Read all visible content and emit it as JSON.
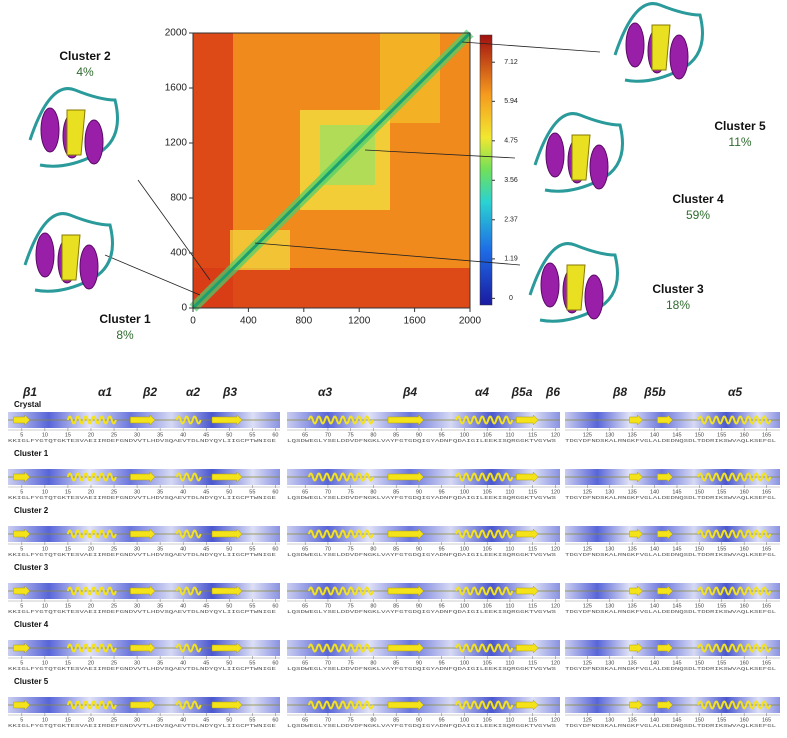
{
  "heatmap": {
    "xlim": [
      0,
      2000
    ],
    "ylim": [
      0,
      2000
    ],
    "xticks": [
      0,
      400,
      800,
      1200,
      1600,
      2000
    ],
    "yticks": [
      0,
      400,
      800,
      1200,
      1600,
      2000
    ],
    "clim": [
      -0.2,
      7.94
    ],
    "colorbar_ticks": [
      0,
      1.19,
      2.37,
      3.56,
      4.75,
      5.94,
      7.12
    ]
  },
  "clusters": [
    {
      "label": "Cluster 1",
      "percent": "8%"
    },
    {
      "label": "Cluster 2",
      "percent": "4%"
    },
    {
      "label": "Cluster 3",
      "percent": "18%"
    },
    {
      "label": "Cluster 4",
      "percent": "59%"
    },
    {
      "label": "Cluster 5",
      "percent": "11%"
    }
  ],
  "ss_headers": [
    "β1",
    "α1",
    "β2",
    "α2",
    "β3",
    "α3",
    "β4",
    "α4",
    "β5a",
    "β6",
    "β8",
    "β5b",
    "α5"
  ],
  "rows": [
    "Crystal",
    "Cluster 1",
    "Cluster 2",
    "Cluster 3",
    "Cluster 4",
    "Cluster 5"
  ],
  "panels": [
    {
      "residue_range": [
        2,
        61
      ],
      "ticks": [
        5,
        10,
        15,
        20,
        25,
        30,
        35,
        40,
        45,
        50,
        55,
        60
      ],
      "sequence": "KKIGLFYGTQTGKTESVAEIIRDEFGNDVVTLHDVSQAEVTDLNDYQYLIIGCPTWNIGE"
    },
    {
      "residue_range": [
        61,
        121
      ],
      "ticks": [
        65,
        70,
        75,
        80,
        85,
        90,
        95,
        100,
        105,
        110,
        115,
        120
      ],
      "sequence": "LQSDWEGLYSELDDVDFNGKLVAYFGTGDQIGYADNFQDAIGILEEKISQRGGKTVGYWS"
    },
    {
      "residue_range": [
        120,
        168
      ],
      "ticks": [
        125,
        130,
        135,
        140,
        145,
        150,
        155,
        160,
        165
      ],
      "sequence": "TDGYDFNDSKALRNGKFVGLALDEDNQSDLTDDRIKSWVAQLKSEFGL"
    }
  ]
}
